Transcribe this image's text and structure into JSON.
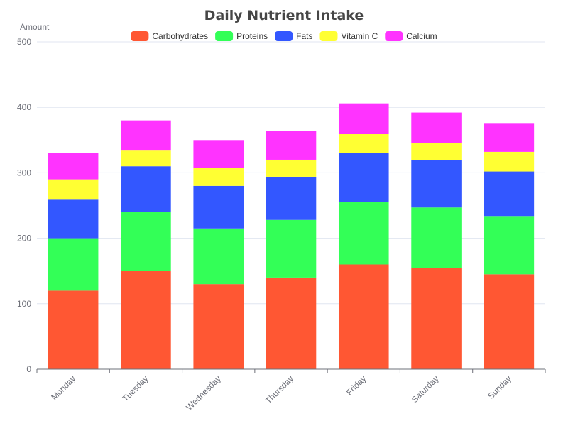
{
  "chart_data": {
    "type": "bar",
    "stacked": true,
    "title": "Daily Nutrient Intake",
    "ylabel": "Amount",
    "xlabel": "",
    "ylim": [
      0,
      500
    ],
    "yticks": [
      0,
      100,
      200,
      300,
      400,
      500
    ],
    "grid": true,
    "legend": "top-center",
    "categories": [
      "Monday",
      "Tuesday",
      "Wednesday",
      "Thursday",
      "Friday",
      "Saturday",
      "Sunday"
    ],
    "series": [
      {
        "name": "Carbohydrates",
        "color": "#ff5733",
        "values": [
          120,
          150,
          130,
          140,
          160,
          155,
          145
        ]
      },
      {
        "name": "Proteins",
        "color": "#33ff57",
        "values": [
          80,
          90,
          85,
          88,
          95,
          92,
          89
        ]
      },
      {
        "name": "Fats",
        "color": "#3357ff",
        "values": [
          60,
          70,
          65,
          66,
          75,
          72,
          68
        ]
      },
      {
        "name": "Vitamin C",
        "color": "#ffff33",
        "values": [
          30,
          25,
          28,
          26,
          29,
          27,
          30
        ]
      },
      {
        "name": "Calcium",
        "color": "#ff33ff",
        "values": [
          40,
          45,
          42,
          44,
          47,
          46,
          44
        ]
      }
    ]
  }
}
